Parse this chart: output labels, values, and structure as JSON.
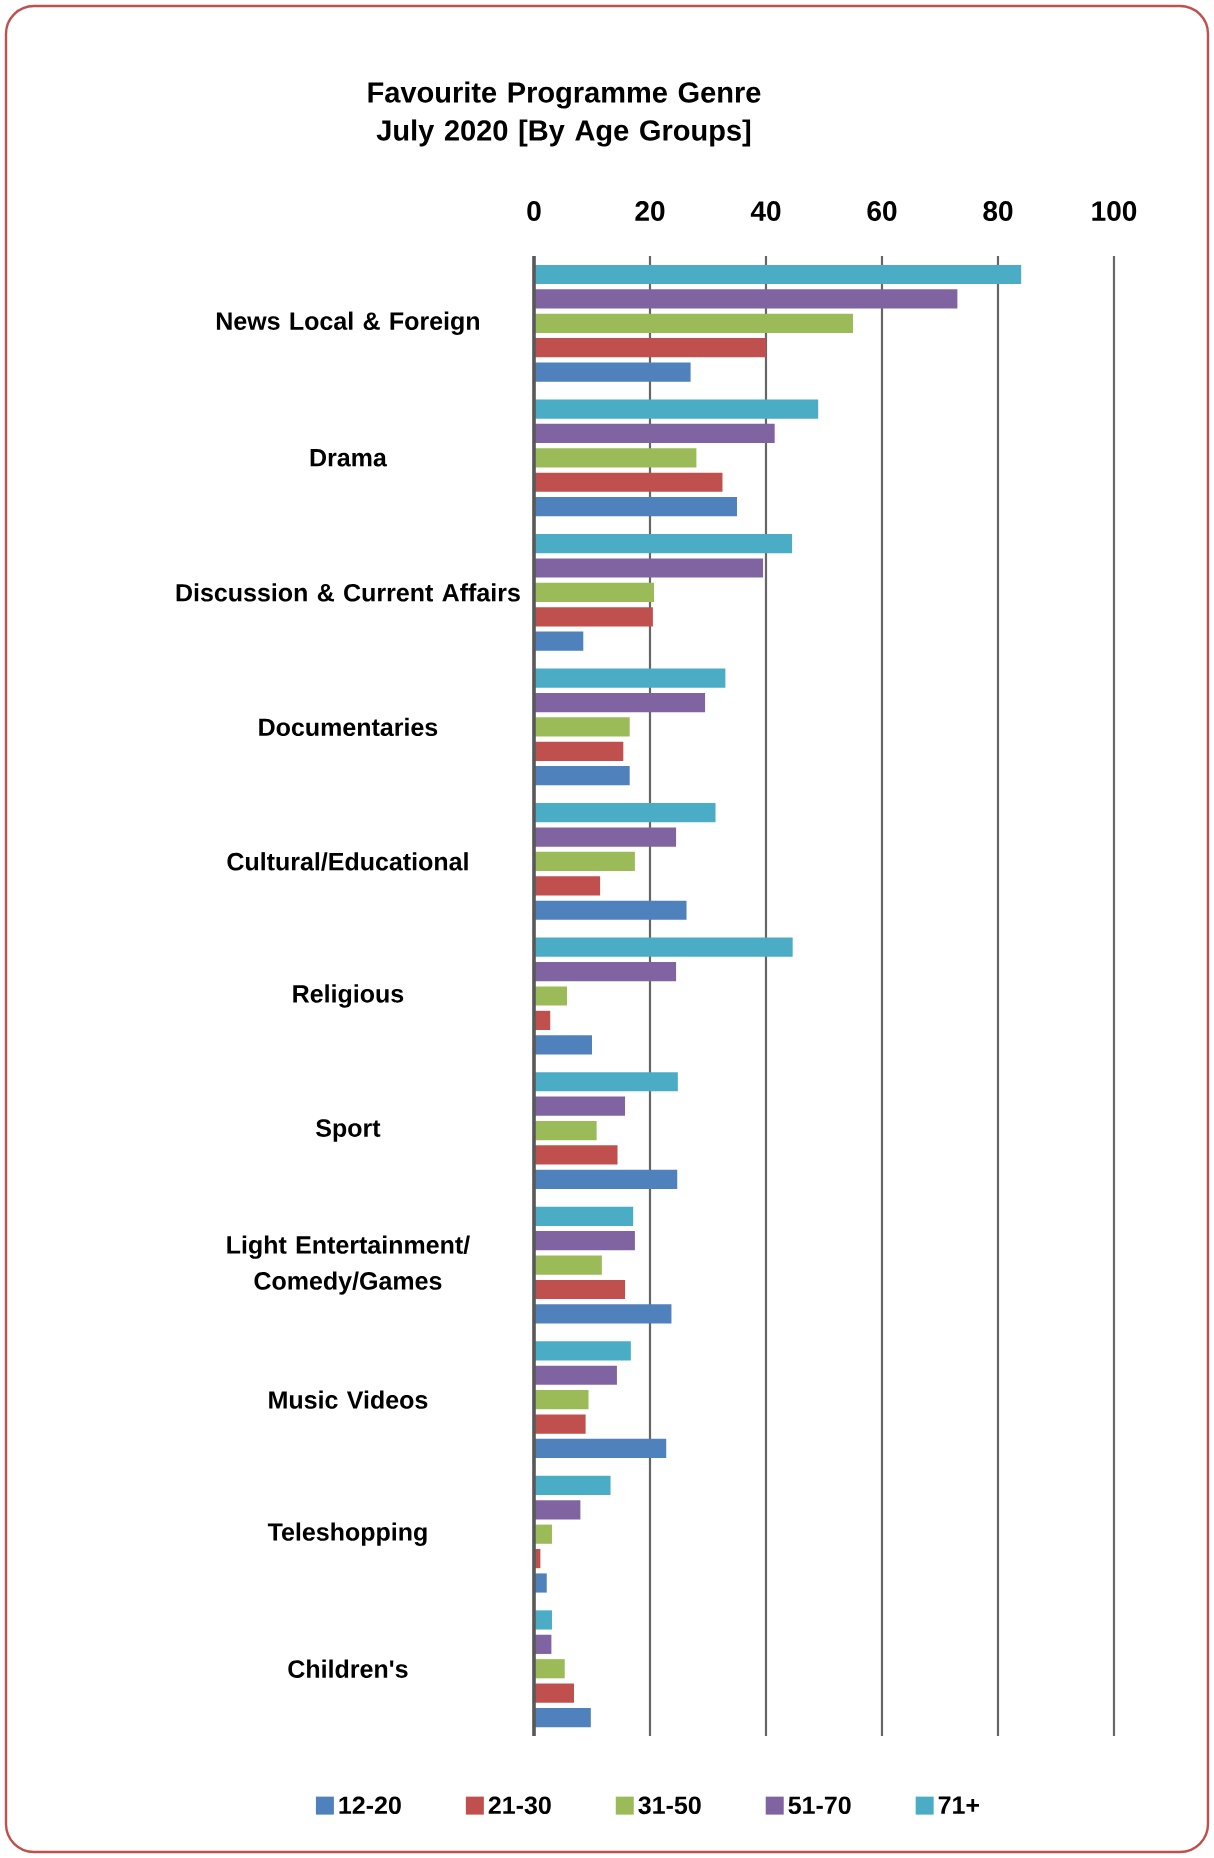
{
  "chart_data": {
    "type": "bar",
    "orientation": "horizontal",
    "title": "Favourite Programme Genre July 2020 [By Age Groups]",
    "categories": [
      "News Local & Foreign",
      "Drama",
      "Discussion & Current Affairs",
      "Documentaries",
      "Cultural/Educational",
      "Religious",
      "Sport",
      "Light Entertainment/ Comedy/Games",
      "Music Videos",
      "Teleshopping",
      "Children's"
    ],
    "series": [
      {
        "name": "12-20",
        "color": "#4f81bd",
        "values": [
          27,
          35,
          8.5,
          16.5,
          26.3,
          10,
          24.7,
          23.7,
          22.8,
          2.2,
          9.8
        ]
      },
      {
        "name": "21-30",
        "color": "#c0504d",
        "values": [
          40,
          32.5,
          20.5,
          15.4,
          11.4,
          2.8,
          14.4,
          15.7,
          8.9,
          1.1,
          6.9
        ]
      },
      {
        "name": "31-50",
        "color": "#9bbb59",
        "values": [
          55,
          28,
          20.7,
          16.5,
          17.4,
          5.7,
          10.8,
          11.7,
          9.4,
          3.1,
          5.3
        ]
      },
      {
        "name": "51-70",
        "color": "#8064a2",
        "values": [
          73,
          41.5,
          39.5,
          29.5,
          24.5,
          24.5,
          15.7,
          17.4,
          14.3,
          8,
          3
        ]
      },
      {
        "name": "71+",
        "color": "#4bacc6",
        "values": [
          84,
          49,
          44.5,
          33,
          31.3,
          44.6,
          24.8,
          17.1,
          16.7,
          13.2,
          3.1
        ]
      }
    ],
    "xlim": [
      0,
      100
    ],
    "xticks": [
      0,
      20,
      40,
      60,
      80,
      100
    ],
    "grid": "x",
    "legend": "bottom"
  }
}
